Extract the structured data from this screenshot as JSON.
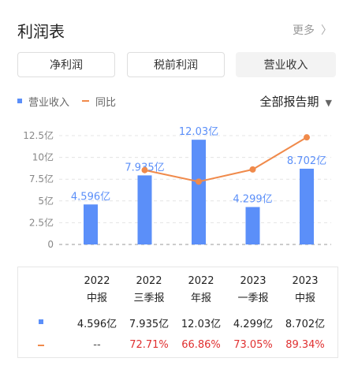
{
  "header": {
    "title": "利润表",
    "more_label": "更多",
    "more_chevron": "〉"
  },
  "tabs": [
    {
      "label": "净利润",
      "active": false
    },
    {
      "label": "税前利润",
      "active": false
    },
    {
      "label": "营业收入",
      "active": true
    }
  ],
  "legend": {
    "revenue": "营业收入",
    "yoy": "同比"
  },
  "period_selector": {
    "label": "全部报告期",
    "caret": "▼"
  },
  "colors": {
    "bar": "#5b8ff9",
    "line": "#f08a4b",
    "negative_text": "#e03030"
  },
  "chart_data": {
    "type": "bar",
    "categories": [
      "2022中报",
      "2022三季报",
      "2022年报",
      "2023一季报",
      "2023中报"
    ],
    "series": [
      {
        "name": "营业收入",
        "values": [
          4.596,
          7.935,
          12.03,
          4.299,
          8.702
        ],
        "labels": [
          "4.596亿",
          "7.935亿",
          "12.03亿",
          "4.299亿",
          "8.702亿"
        ]
      },
      {
        "name": "同比",
        "type": "line",
        "values": [
          null,
          72.71,
          66.86,
          73.05,
          89.34
        ]
      }
    ],
    "yticks": [
      "12.5亿",
      "10亿",
      "7.5亿",
      "5亿",
      "2.5亿",
      "0"
    ],
    "ylim": [
      0,
      12.5
    ],
    "grid": true
  },
  "table": {
    "columns": [
      {
        "year": "2022",
        "period": "中报"
      },
      {
        "year": "2022",
        "period": "三季报"
      },
      {
        "year": "2022",
        "period": "年报"
      },
      {
        "year": "2023",
        "period": "一季报"
      },
      {
        "year": "2023",
        "period": "中报"
      }
    ],
    "revenue_row": [
      "4.596亿",
      "7.935亿",
      "12.03亿",
      "4.299亿",
      "8.702亿"
    ],
    "yoy_row": [
      "--",
      "72.71%",
      "66.86%",
      "73.05%",
      "89.34%"
    ]
  }
}
